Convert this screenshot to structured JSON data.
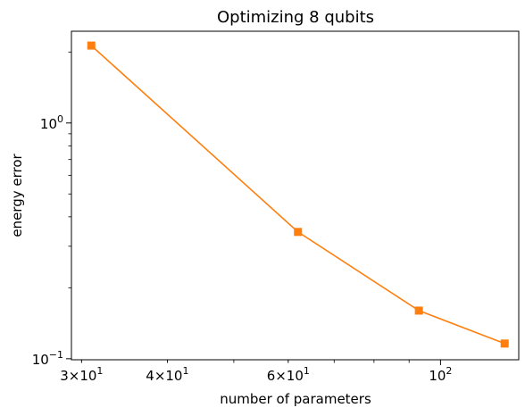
{
  "chart_data": {
    "type": "line",
    "title": "Optimizing 8 qubits",
    "xlabel": "number of parameters",
    "ylabel": "energy error",
    "xscale": "log",
    "yscale": "log",
    "xlim": [
      29,
      130
    ],
    "ylim": [
      0.099,
      2.45
    ],
    "grid": false,
    "legend": "none",
    "x_ticks": [
      {
        "value": 30,
        "base": "3×10",
        "exp": "1"
      },
      {
        "value": 40,
        "base": "4×10",
        "exp": "1"
      },
      {
        "value": 60,
        "base": "6×10",
        "exp": "1"
      },
      {
        "value": 100,
        "base": "10",
        "exp": "2"
      }
    ],
    "y_ticks": [
      {
        "value": 0.1,
        "base": "10",
        "exp": "−1"
      },
      {
        "value": 1,
        "base": "10",
        "exp": "0"
      }
    ],
    "series": [
      {
        "color": "#ff7f0e",
        "marker": "square",
        "x": [
          31,
          62,
          93,
          124
        ],
        "y": [
          2.13,
          0.345,
          0.16,
          0.116
        ]
      }
    ]
  }
}
